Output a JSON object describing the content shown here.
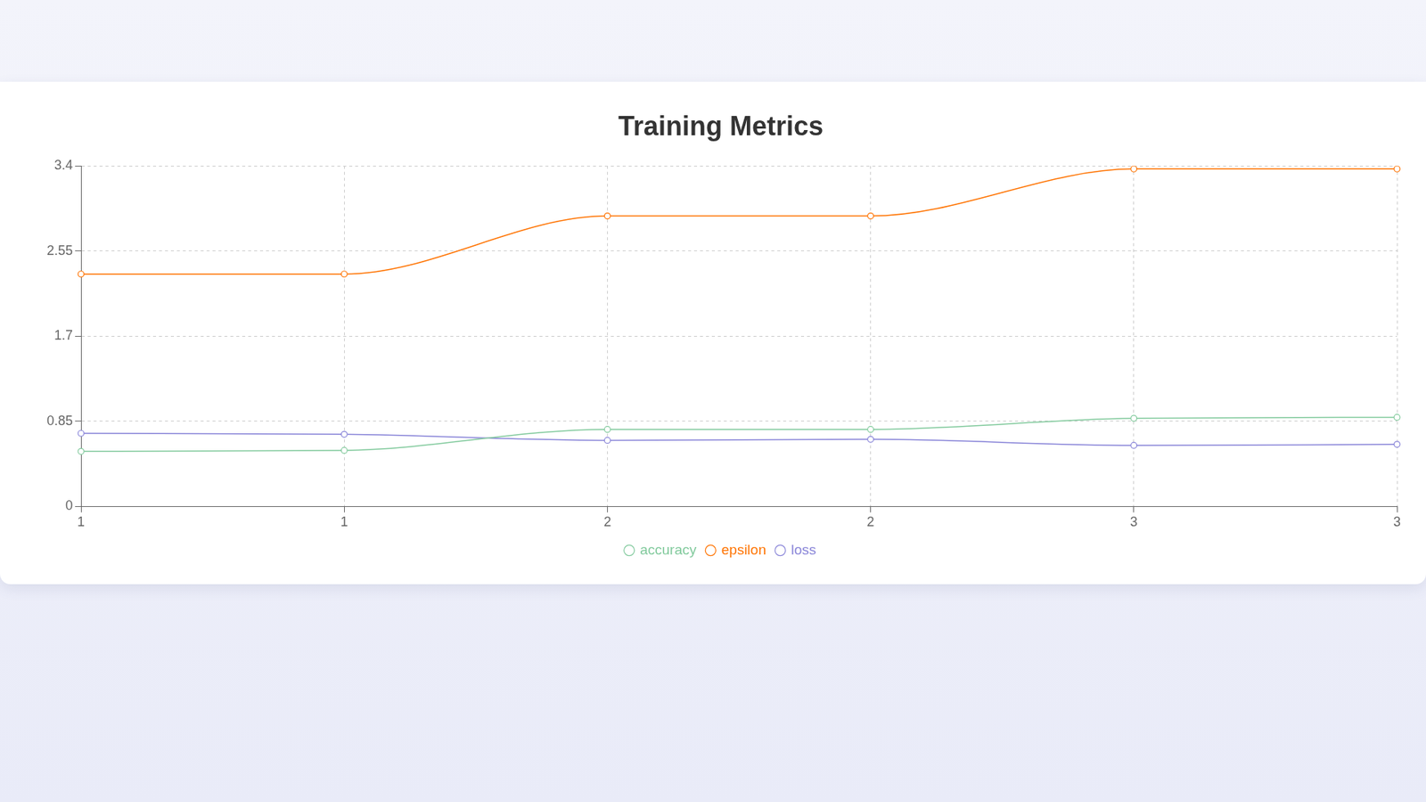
{
  "chart_data": {
    "type": "line",
    "title": "Training Metrics",
    "categories": [
      "1",
      "1",
      "2",
      "2",
      "3",
      "3"
    ],
    "series": [
      {
        "name": "accuracy",
        "color": "#82ca9d",
        "values": [
          0.55,
          0.56,
          0.77,
          0.77,
          0.88,
          0.89
        ]
      },
      {
        "name": "epsilon",
        "color": "#ff7300",
        "values": [
          2.32,
          2.32,
          2.9,
          2.9,
          3.37,
          3.37
        ]
      },
      {
        "name": "loss",
        "color": "#8884d8",
        "values": [
          0.73,
          0.72,
          0.66,
          0.67,
          0.61,
          0.62
        ]
      }
    ],
    "ylim": [
      0,
      3.4
    ],
    "yticks": [
      0,
      0.85,
      1.7,
      2.55,
      3.4
    ],
    "grid": true,
    "legend": "bottom",
    "marker": "circle"
  }
}
